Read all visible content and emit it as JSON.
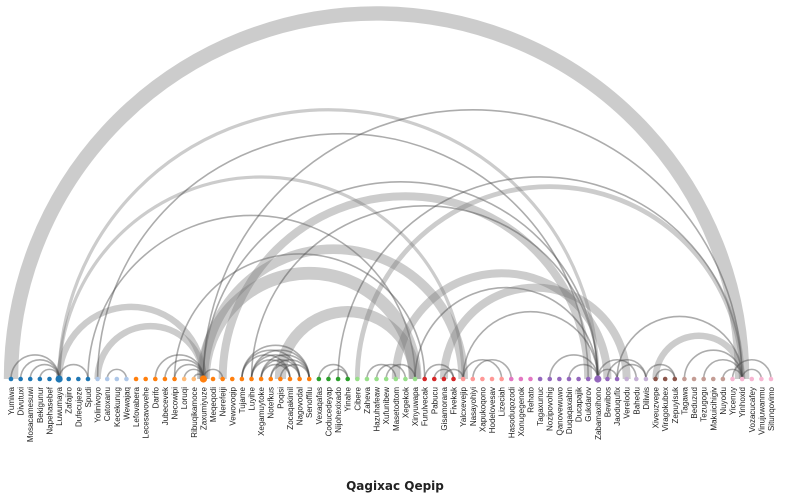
{
  "title": "Qagixac Qepip",
  "chart_data": {
    "type": "arc-diagram",
    "title": "Qagixac Qepip",
    "nodes": [
      {
        "name": "Yumiwa",
        "group": 0
      },
      {
        "name": "Divutuxi",
        "group": 0
      },
      {
        "name": "Mosacamesuwi",
        "group": 0
      },
      {
        "name": "Bekigunur",
        "group": 0
      },
      {
        "name": "Napehasebef",
        "group": 0
      },
      {
        "name": "Luwumaya",
        "group": 0,
        "size": 2.2
      },
      {
        "name": "Zafajiro",
        "group": 0
      },
      {
        "name": "Dufecujeze",
        "group": 0
      },
      {
        "name": "Spudi",
        "group": 0
      },
      {
        "name": "Yolinivoyo",
        "group": 1
      },
      {
        "name": "Catoxanu",
        "group": 1
      },
      {
        "name": "Kecekunug",
        "group": 1
      },
      {
        "name": "Wewajaq",
        "group": 1
      },
      {
        "name": "Lefovabera",
        "group": 2
      },
      {
        "name": "Lecesavovehe",
        "group": 2
      },
      {
        "name": "Darifo",
        "group": 2
      },
      {
        "name": "Jubecevek",
        "group": 2
      },
      {
        "name": "Necowipi",
        "group": 2
      },
      {
        "name": "Loruqi",
        "group": 3
      },
      {
        "name": "Ribuqikamoce",
        "group": 3
      },
      {
        "name": "Zaxumiyuze",
        "group": 4,
        "size": 2.2
      },
      {
        "name": "Meqeqodi",
        "group": 4
      },
      {
        "name": "Nerefeiji",
        "group": 4
      },
      {
        "name": "Vewovoqip",
        "group": 4
      },
      {
        "name": "Tujame",
        "group": 4
      },
      {
        "name": "Luyihe",
        "group": 4
      },
      {
        "name": "Xegamuytoke",
        "group": 4
      },
      {
        "name": "Notefkus",
        "group": 4
      },
      {
        "name": "Poqisi",
        "group": 4
      },
      {
        "name": "Zocaqakimil",
        "group": 4
      },
      {
        "name": "Nagovodal",
        "group": 4
      },
      {
        "name": "Senoffilu",
        "group": 4
      },
      {
        "name": "Vexaqafas",
        "group": 5
      },
      {
        "name": "Coducedeyap",
        "group": 5
      },
      {
        "name": "Nijohexixado",
        "group": 5
      },
      {
        "name": "Yinahe",
        "group": 5
      },
      {
        "name": "Cibere",
        "group": 6
      },
      {
        "name": "Zaheva",
        "group": 6
      },
      {
        "name": "Hazuhafeaw",
        "group": 6
      },
      {
        "name": "Xufunibew",
        "group": 6
      },
      {
        "name": "Masetodtom",
        "group": 6
      },
      {
        "name": "Xegekok",
        "group": 6
      },
      {
        "name": "Xinyuwapa",
        "group": 6
      },
      {
        "name": "Furulvecak",
        "group": 7
      },
      {
        "name": "Pabucu",
        "group": 7
      },
      {
        "name": "Gisamorana",
        "group": 7
      },
      {
        "name": "Fivekak",
        "group": 7
      },
      {
        "name": "Yalcxevejip",
        "group": 8
      },
      {
        "name": "Nasayohiyi",
        "group": 8
      },
      {
        "name": "Xapukoqono",
        "group": 8
      },
      {
        "name": "Hodelovesav",
        "group": 8
      },
      {
        "name": "Lizeciah",
        "group": 8
      },
      {
        "name": "Hasoduqozodi",
        "group": 9
      },
      {
        "name": "Xonugegenok",
        "group": 9
      },
      {
        "name": "Rehato",
        "group": 9
      },
      {
        "name": "Tagaxunuc",
        "group": 10
      },
      {
        "name": "Nozipovohig",
        "group": 10
      },
      {
        "name": "Qanovewuwo",
        "group": 10
      },
      {
        "name": "Duqaqaxabin",
        "group": 10
      },
      {
        "name": "Ducapajik",
        "group": 10
      },
      {
        "name": "Gukdarov",
        "group": 10
      },
      {
        "name": "Zabamaxihono",
        "group": 10,
        "size": 2.2
      },
      {
        "name": "Bewibos",
        "group": 10
      },
      {
        "name": "Jaoduqufix",
        "group": 10
      },
      {
        "name": "Verelodu",
        "group": 11
      },
      {
        "name": "Bahedu",
        "group": 11
      },
      {
        "name": "Diliwis",
        "group": 11
      },
      {
        "name": "Xiveuzvepe",
        "group": 12
      },
      {
        "name": "Viragokubex",
        "group": 12
      },
      {
        "name": "Zepuyisuk",
        "group": 12
      },
      {
        "name": "Tagawa",
        "group": 13
      },
      {
        "name": "Beduzud",
        "group": 13
      },
      {
        "name": "Tezugogu",
        "group": 13
      },
      {
        "name": "Makuicihigiv",
        "group": 13
      },
      {
        "name": "Nuyodu",
        "group": 13
      },
      {
        "name": "Yicenuy",
        "group": 14
      },
      {
        "name": "Yinhoxid",
        "group": 14
      },
      {
        "name": "Vozacucafey",
        "group": 14
      },
      {
        "name": "Vinujuwanmu",
        "group": 14
      },
      {
        "name": "Situnqovimo",
        "group": 14
      }
    ],
    "links": [
      {
        "source": 0,
        "target": 76,
        "value": 9
      },
      {
        "source": 5,
        "target": 61,
        "value": 2
      },
      {
        "source": 5,
        "target": 47,
        "value": 2
      },
      {
        "source": 5,
        "target": 20,
        "value": 4
      },
      {
        "source": 9,
        "target": 20,
        "value": 4
      },
      {
        "source": 8,
        "target": 42,
        "value": 1
      },
      {
        "source": 9,
        "target": 60,
        "value": 1
      },
      {
        "source": 17,
        "target": 43,
        "value": 1
      },
      {
        "source": 20,
        "target": 61,
        "value": 1
      },
      {
        "source": 20,
        "target": 47,
        "value": 6
      },
      {
        "source": 20,
        "target": 42,
        "value": 8
      },
      {
        "source": 28,
        "target": 42,
        "value": 7
      },
      {
        "source": 22,
        "target": 60,
        "value": 5
      },
      {
        "source": 25,
        "target": 61,
        "value": 1
      },
      {
        "source": 20,
        "target": 76,
        "value": 1
      },
      {
        "source": 34,
        "target": 76,
        "value": 1
      },
      {
        "source": 36,
        "target": 76,
        "value": 3
      },
      {
        "source": 42,
        "target": 61,
        "value": 1
      },
      {
        "source": 40,
        "target": 62,
        "value": 5
      },
      {
        "source": 45,
        "target": 64,
        "value": 5
      },
      {
        "source": 47,
        "target": 61,
        "value": 1
      },
      {
        "source": 63,
        "target": 76,
        "value": 1
      },
      {
        "source": 67,
        "target": 76,
        "value": 4
      },
      {
        "source": 0,
        "target": 5,
        "value": 1
      },
      {
        "source": 1,
        "target": 5,
        "value": 1
      },
      {
        "source": 2,
        "target": 5,
        "value": 1
      },
      {
        "source": 3,
        "target": 5,
        "value": 1
      },
      {
        "source": 5,
        "target": 8,
        "value": 1
      },
      {
        "source": 10,
        "target": 12,
        "value": 1
      },
      {
        "source": 15,
        "target": 20,
        "value": 1
      },
      {
        "source": 16,
        "target": 20,
        "value": 1
      },
      {
        "source": 17,
        "target": 20,
        "value": 1
      },
      {
        "source": 18,
        "target": 20,
        "value": 1
      },
      {
        "source": 19,
        "target": 20,
        "value": 1
      },
      {
        "source": 20,
        "target": 22,
        "value": 1
      },
      {
        "source": 24,
        "target": 31,
        "value": 1
      },
      {
        "source": 24,
        "target": 30,
        "value": 1
      },
      {
        "source": 25,
        "target": 30,
        "value": 1
      },
      {
        "source": 25,
        "target": 31,
        "value": 1
      },
      {
        "source": 26,
        "target": 30,
        "value": 1
      },
      {
        "source": 26,
        "target": 31,
        "value": 1
      },
      {
        "source": 27,
        "target": 30,
        "value": 1
      },
      {
        "source": 27,
        "target": 31,
        "value": 1
      },
      {
        "source": 24,
        "target": 29,
        "value": 1
      },
      {
        "source": 25,
        "target": 29,
        "value": 1
      },
      {
        "source": 26,
        "target": 29,
        "value": 1
      },
      {
        "source": 28,
        "target": 31,
        "value": 1
      },
      {
        "source": 32,
        "target": 35,
        "value": 1
      },
      {
        "source": 33,
        "target": 35,
        "value": 1
      },
      {
        "source": 37,
        "target": 40,
        "value": 1
      },
      {
        "source": 38,
        "target": 41,
        "value": 1
      },
      {
        "source": 39,
        "target": 42,
        "value": 1
      },
      {
        "source": 43,
        "target": 46,
        "value": 1
      },
      {
        "source": 44,
        "target": 46,
        "value": 1
      },
      {
        "source": 45,
        "target": 47,
        "value": 1
      },
      {
        "source": 48,
        "target": 52,
        "value": 1
      },
      {
        "source": 47,
        "target": 51,
        "value": 1
      },
      {
        "source": 56,
        "target": 61,
        "value": 1
      },
      {
        "source": 58,
        "target": 61,
        "value": 1
      },
      {
        "source": 61,
        "target": 63,
        "value": 1
      },
      {
        "source": 61,
        "target": 65,
        "value": 1
      },
      {
        "source": 62,
        "target": 66,
        "value": 1
      },
      {
        "source": 63,
        "target": 66,
        "value": 1
      },
      {
        "source": 66,
        "target": 69,
        "value": 1
      },
      {
        "source": 67,
        "target": 69,
        "value": 1
      },
      {
        "source": 70,
        "target": 76,
        "value": 1
      },
      {
        "source": 72,
        "target": 76,
        "value": 1
      },
      {
        "source": 74,
        "target": 76,
        "value": 1
      },
      {
        "source": 76,
        "target": 78,
        "value": 1
      },
      {
        "source": 75,
        "target": 79,
        "value": 1
      }
    ],
    "groups": {
      "colors": [
        "#1f77b4",
        "#aec7e8",
        "#ff7f0e",
        "#ffbb78",
        "#ff7f0e",
        "#2ca02c",
        "#98df8a",
        "#d62728",
        "#ff9896",
        "#e377c2",
        "#9467bd",
        "#c5b0d5",
        "#8c564b",
        "#c49c94",
        "#f7b6d2"
      ]
    }
  }
}
